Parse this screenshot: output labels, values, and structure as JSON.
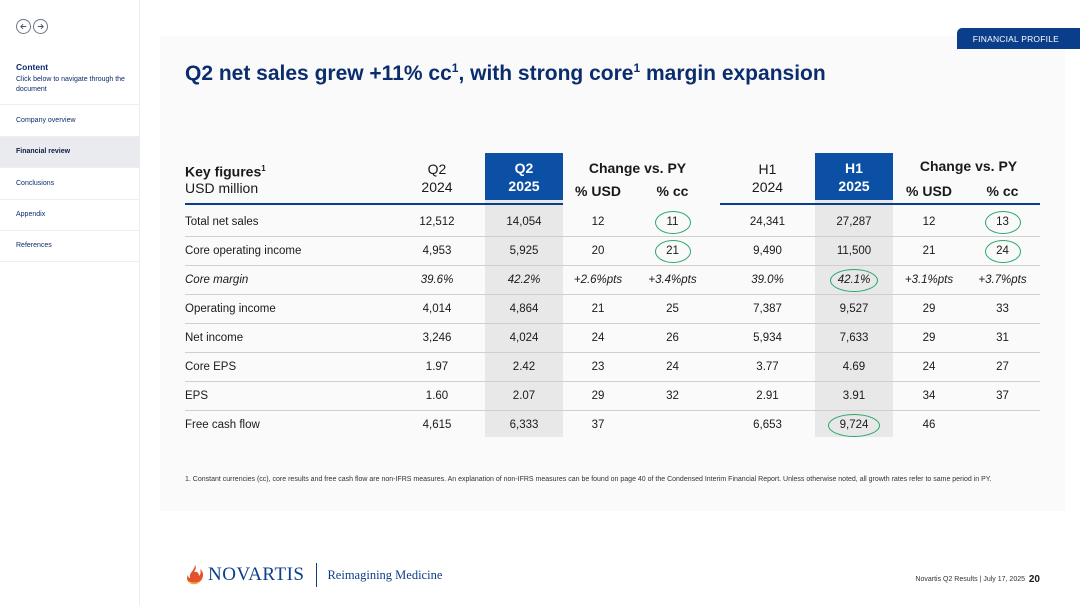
{
  "sidebar": {
    "title": "Content",
    "subtitle": "Click below to navigate through the document",
    "items": [
      {
        "label": "Company overview"
      },
      {
        "label": "Financial review"
      },
      {
        "label": "Conclusions"
      },
      {
        "label": "Appendix"
      },
      {
        "label": "References"
      }
    ],
    "active_index": 1,
    "prev_icon": "arrow-left-icon",
    "next_icon": "arrow-right-icon"
  },
  "section_tag": "FINANCIAL PROFILE",
  "headline": {
    "part1": "Q2 net sales grew +11% cc",
    "sup1": "1",
    "part2": ", with strong core",
    "sup2": "1",
    "part3": " margin expansion"
  },
  "table": {
    "key_figures": "Key figures",
    "key_figures_sup": "1",
    "unit": "USD million",
    "q2_2024": {
      "line1": "Q2",
      "line2": "2024"
    },
    "q2_2025": {
      "line1": "Q2",
      "line2": "2025"
    },
    "h1_2024": {
      "line1": "H1",
      "line2": "2024"
    },
    "h1_2025": {
      "line1": "H1",
      "line2": "2025"
    },
    "change_q": "Change vs. PY",
    "change_h": "Change vs. PY",
    "pct_usd_q": "% USD",
    "pct_cc_q": "% cc",
    "pct_usd_h": "% USD",
    "pct_cc_h": "% cc",
    "rows": [
      {
        "label": "Total net sales",
        "q2_2024": "12,512",
        "q2_2025": "14,054",
        "q_usd": "12",
        "q_cc": "11",
        "h1_2024": "24,341",
        "h1_2025": "27,287",
        "h_usd": "12",
        "h_cc": "13"
      },
      {
        "label": "Core operating income",
        "q2_2024": "4,953",
        "q2_2025": "5,925",
        "q_usd": "20",
        "q_cc": "21",
        "h1_2024": "9,490",
        "h1_2025": "11,500",
        "h_usd": "21",
        "h_cc": "24"
      },
      {
        "label": "Core margin",
        "q2_2024": "39.6%",
        "q2_2025": "42.2%",
        "q_usd": "+2.6%pts",
        "q_cc": "+3.4%pts",
        "h1_2024": "39.0%",
        "h1_2025": "42.1%",
        "h_usd": "+3.1%pts",
        "h_cc": "+3.7%pts"
      },
      {
        "label": "Operating income",
        "q2_2024": "4,014",
        "q2_2025": "4,864",
        "q_usd": "21",
        "q_cc": "25",
        "h1_2024": "7,387",
        "h1_2025": "9,527",
        "h_usd": "29",
        "h_cc": "33"
      },
      {
        "label": "Net income",
        "q2_2024": "3,246",
        "q2_2025": "4,024",
        "q_usd": "24",
        "q_cc": "26",
        "h1_2024": "5,934",
        "h1_2025": "7,633",
        "h_usd": "29",
        "h_cc": "31"
      },
      {
        "label": "Core EPS",
        "q2_2024": "1.97",
        "q2_2025": "2.42",
        "q_usd": "23",
        "q_cc": "24",
        "h1_2024": "3.77",
        "h1_2025": "4.69",
        "h_usd": "24",
        "h_cc": "27"
      },
      {
        "label": "EPS",
        "q2_2024": "1.60",
        "q2_2025": "2.07",
        "q_usd": "29",
        "q_cc": "32",
        "h1_2024": "2.91",
        "h1_2025": "3.91",
        "h_usd": "34",
        "h_cc": "37"
      },
      {
        "label": "Free cash flow",
        "q2_2024": "4,615",
        "q2_2025": "6,333",
        "q_usd": "37",
        "q_cc": "",
        "h1_2024": "6,653",
        "h1_2025": "9,724",
        "h_usd": "46",
        "h_cc": ""
      }
    ]
  },
  "footnote": "1. Constant currencies (cc), core results and free cash flow are non-IFRS measures. An explanation of non-IFRS measures can be found on page 40 of the Condensed Interim Financial Report. Unless otherwise noted, all growth rates refer to same period in PY.",
  "footer": {
    "logo_text": "NOVARTIS",
    "tagline": "Reimagining Medicine",
    "doc_info": "Novartis Q2 Results | July 17, 2025",
    "page_number": "20"
  },
  "colors": {
    "navy": "#0b2d6e",
    "header_blue": "#0b50a5",
    "highlight_circle": "#2aa86b",
    "column_shade": "#e8e8e8"
  }
}
